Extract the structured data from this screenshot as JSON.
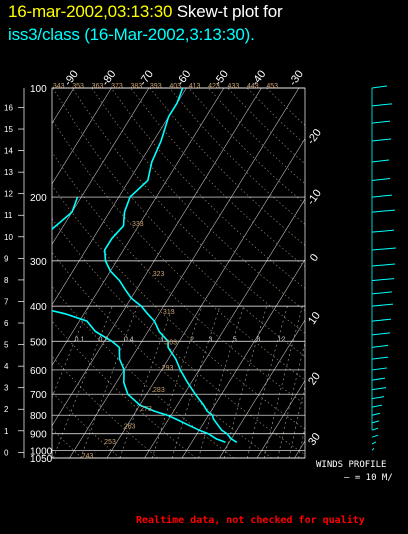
{
  "header": {
    "datetime": "16-mar-2002,03:13:30",
    "plot_label": "Skew-t plot for",
    "subtitle": "iss3/class (16-Mar-2002,3:13:30)."
  },
  "winds": {
    "title": "WINDS PROFILE",
    "scale": "— = 10 M/"
  },
  "footer": "Realtime data, not checked for quality",
  "colors": {
    "background": "#000000",
    "datetime": "#ffff00",
    "subtitle": "#00ffff",
    "profile": "#00ffff",
    "grid": "#ffffff",
    "adiabat_labels": "#c8a070",
    "mixing_labels": "#80a0ff",
    "footer": "#ff0000"
  },
  "chart_data": {
    "type": "line",
    "pressure_levels": [
      100,
      200,
      300,
      400,
      500,
      600,
      700,
      800,
      900,
      1000,
      1050
    ],
    "altitude_ticks": [
      0,
      1,
      2,
      3,
      4,
      5,
      6,
      7,
      8,
      9,
      10,
      11,
      12,
      13,
      14,
      15,
      16
    ],
    "temperature_ticks": [
      -90,
      -80,
      -70,
      -60,
      -50,
      -40,
      -30,
      -20,
      -10,
      0,
      10,
      20,
      30
    ],
    "dry_adiabat_labels": [
      243,
      253,
      263,
      273,
      283,
      293,
      303,
      313,
      323,
      333,
      343,
      353,
      363,
      373,
      383,
      393,
      403,
      413,
      423,
      433,
      443,
      453
    ],
    "mixing_ratio_labels": [
      0.1,
      0.2,
      0.4,
      1.0,
      2.0,
      3.0,
      5.0,
      8.0,
      12.0,
      16,
      20,
      24,
      28,
      32,
      36
    ],
    "series": [
      {
        "pressure": [
          950,
          930,
          900,
          880,
          850,
          820,
          800,
          780,
          750,
          700,
          650,
          600,
          560,
          520,
          500,
          470,
          440,
          420,
          400,
          380,
          360,
          340,
          320,
          300,
          280,
          260,
          240,
          220,
          200,
          180,
          160,
          140,
          120,
          110,
          100
        ],
        "temperature": [
          12,
          10,
          8,
          6,
          4,
          2,
          1,
          -1,
          -3,
          -7,
          -11,
          -15,
          -18,
          -22,
          -23,
          -27,
          -30,
          -33,
          -36,
          -40,
          -43,
          -46,
          -50,
          -53,
          -55,
          -55,
          -54,
          -56,
          -57,
          -55,
          -57,
          -58,
          -60,
          -60,
          -61
        ]
      },
      {
        "pressure": [
          950,
          930,
          900,
          880,
          850,
          820,
          800,
          780,
          750,
          700,
          650,
          600,
          560,
          520,
          500,
          470,
          440,
          420,
          400,
          380,
          360,
          340,
          320,
          300,
          280,
          260,
          240,
          220,
          200
        ],
        "temperature": [
          9,
          6,
          3,
          0,
          -4,
          -8,
          -11,
          -15,
          -20,
          -25,
          -28,
          -30,
          -33,
          -35,
          -38,
          -44,
          -48,
          -55,
          -65,
          -80,
          -86,
          -80,
          -75,
          -73,
          -72,
          -74,
          -72,
          -70,
          -71
        ]
      }
    ],
    "wind_profile": [
      {
        "p": 1000,
        "len": 2
      },
      {
        "p": 960,
        "len": 4
      },
      {
        "p": 920,
        "len": 6
      },
      {
        "p": 880,
        "len": 6
      },
      {
        "p": 840,
        "len": 7
      },
      {
        "p": 800,
        "len": 8
      },
      {
        "p": 760,
        "len": 10
      },
      {
        "p": 720,
        "len": 12
      },
      {
        "p": 680,
        "len": 14
      },
      {
        "p": 640,
        "len": 13
      },
      {
        "p": 600,
        "len": 15
      },
      {
        "p": 560,
        "len": 16
      },
      {
        "p": 520,
        "len": 16
      },
      {
        "p": 480,
        "len": 18
      },
      {
        "p": 440,
        "len": 19
      },
      {
        "p": 400,
        "len": 21
      },
      {
        "p": 370,
        "len": 20
      },
      {
        "p": 340,
        "len": 22
      },
      {
        "p": 310,
        "len": 23
      },
      {
        "p": 280,
        "len": 24
      },
      {
        "p": 250,
        "len": 22
      },
      {
        "p": 220,
        "len": 23
      },
      {
        "p": 200,
        "len": 20
      },
      {
        "p": 180,
        "len": 18
      },
      {
        "p": 160,
        "len": 17
      },
      {
        "p": 140,
        "len": 19
      },
      {
        "p": 125,
        "len": 18
      },
      {
        "p": 112,
        "len": 20
      },
      {
        "p": 100,
        "len": 15
      }
    ],
    "title": "",
    "xlabel": "",
    "ylabel": ""
  }
}
